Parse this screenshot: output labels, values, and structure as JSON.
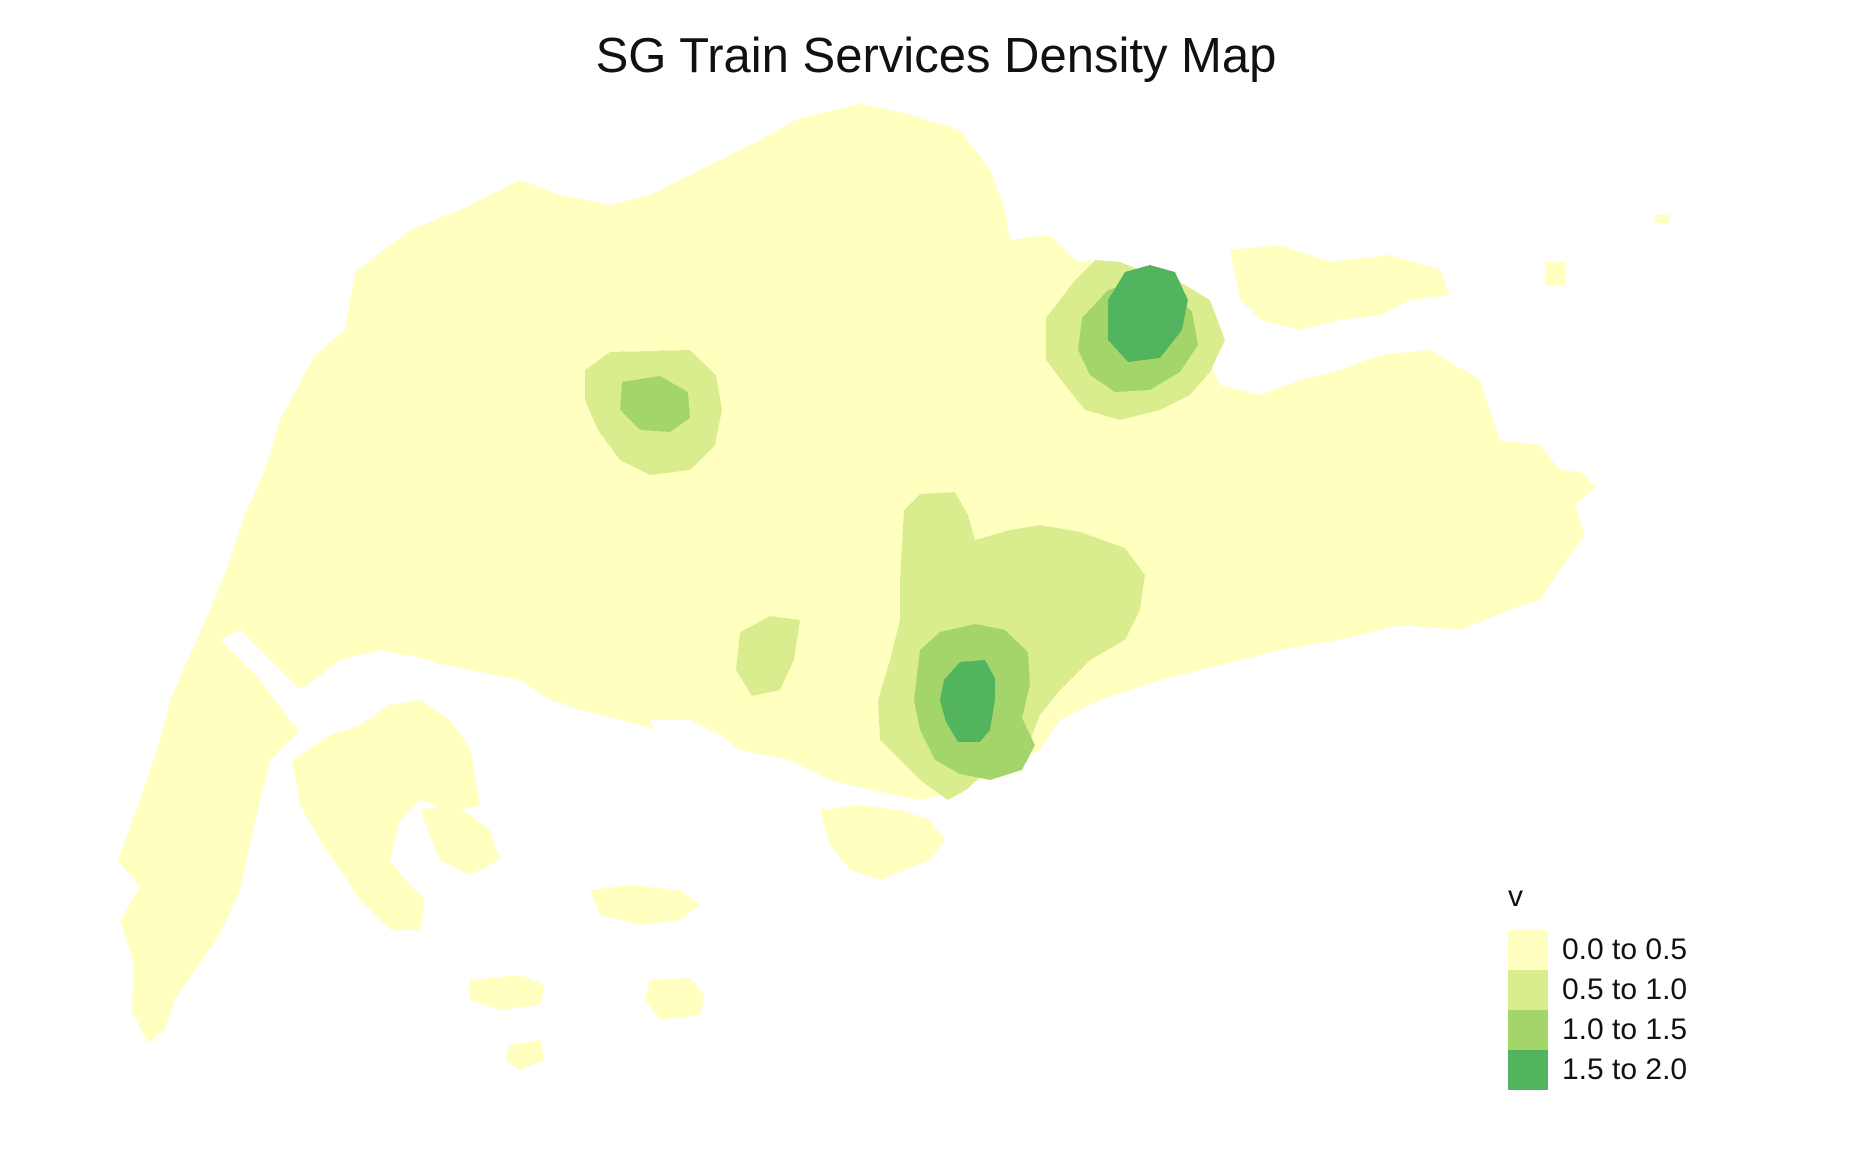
{
  "chart_data": {
    "type": "heatmap",
    "title": "SG Train Services Density Map",
    "legend": {
      "title": "v",
      "position": "bottom-right",
      "classes": [
        {
          "label": "0.0 to 0.5",
          "range": [
            0.0,
            0.5
          ],
          "color": "#ffffc0"
        },
        {
          "label": "0.5 to 1.0",
          "range": [
            0.5,
            1.0
          ],
          "color": "#d9ec8e"
        },
        {
          "label": "1.0 to 1.5",
          "range": [
            1.0,
            1.5
          ],
          "color": "#a3d56b"
        },
        {
          "label": "1.5 to 2.0",
          "range": [
            1.5,
            2.0
          ],
          "color": "#52b45e"
        }
      ]
    },
    "hotspots": [
      {
        "name": "north-east",
        "peak_class": "1.5 to 2.0"
      },
      {
        "name": "south-central",
        "peak_class": "1.5 to 2.0"
      },
      {
        "name": "west",
        "peak_class": "1.0 to 1.5"
      },
      {
        "name": "central-west-small",
        "peak_class": "0.5 to 1.0"
      }
    ]
  },
  "colors": {
    "background": "#ffffff",
    "text": "#111111"
  }
}
